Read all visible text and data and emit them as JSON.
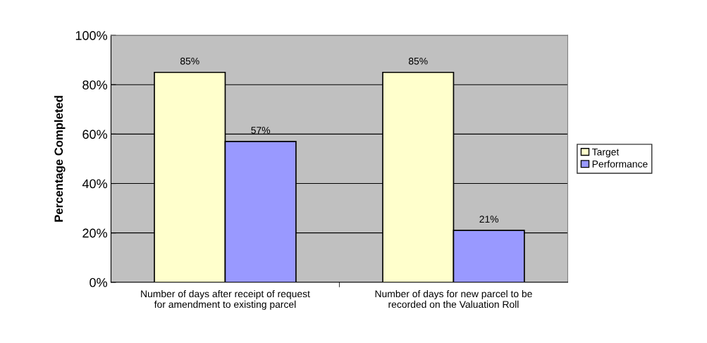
{
  "chart_data": {
    "type": "bar",
    "ylabel": "Percentage Completed",
    "categories": [
      "Number of days after receipt of request\nfor amendment to existing parcel",
      "Number of days for new parcel to be\nrecorded on the Valuation Roll"
    ],
    "series": [
      {
        "name": "Target",
        "color": "#ffffcc",
        "values": [
          85,
          85
        ],
        "value_labels": [
          "85%",
          "85%"
        ]
      },
      {
        "name": "Performance",
        "color": "#9999ff",
        "values": [
          57,
          21
        ],
        "value_labels": [
          "57%",
          "21%"
        ]
      }
    ],
    "ylim": [
      0,
      100
    ],
    "yticks": [
      {
        "value": 0,
        "label": "0%"
      },
      {
        "value": 20,
        "label": "20%"
      },
      {
        "value": 40,
        "label": "40%"
      },
      {
        "value": 60,
        "label": "60%"
      },
      {
        "value": 80,
        "label": "80%"
      },
      {
        "value": 100,
        "label": "100%"
      }
    ],
    "grid": "y",
    "legend": "right"
  }
}
